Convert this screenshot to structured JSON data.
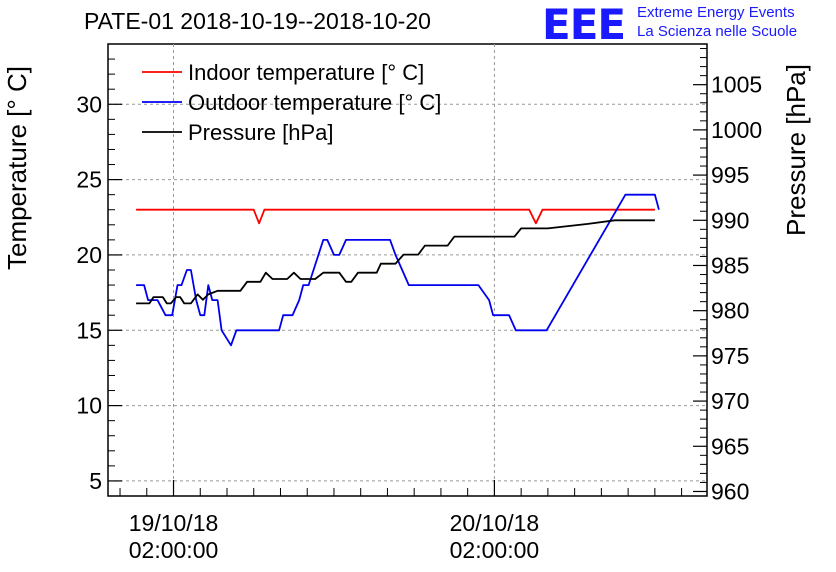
{
  "header": {
    "title": "PATE-01 2018-10-19--2018-10-20",
    "logo_text": "EEE",
    "logo_line1": "Extreme Energy Events",
    "logo_line2": "La Scienza nelle Scuole"
  },
  "colors": {
    "indoor": "#ff0000",
    "outdoor": "#0000ee",
    "pressure": "#000000"
  },
  "chart_data": {
    "type": "line",
    "title": "PATE-01 2018-10-19--2018-10-20",
    "y_left": {
      "label": "Temperature [° C]",
      "min": 4,
      "max": 34,
      "ticks": [
        5,
        10,
        15,
        20,
        25,
        30
      ]
    },
    "y_right": {
      "label": "Pressure [hPa]",
      "min": 959.5,
      "max": 1009.5,
      "ticks": [
        960,
        965,
        970,
        975,
        980,
        985,
        990,
        995,
        1000,
        1005
      ]
    },
    "x_axis": {
      "unit": "hours since 2018-10-19 00:00",
      "range": [
        -2.9,
        41.9
      ],
      "ticks": [
        {
          "x": 2,
          "line1": "19/10/18",
          "line2": "02:00:00"
        },
        {
          "x": 26,
          "line1": "20/10/18",
          "line2": "02:00:00"
        }
      ]
    },
    "grid": true,
    "legend_position": "top-left",
    "series": [
      {
        "name": "Indoor temperature [° C]",
        "axis": "left",
        "color": "#ff0000",
        "points": [
          [
            -0.8,
            23
          ],
          [
            8.0,
            23
          ],
          [
            8.4,
            22.1
          ],
          [
            8.8,
            23
          ],
          [
            28.6,
            23
          ],
          [
            29.1,
            22.1
          ],
          [
            29.6,
            23
          ],
          [
            38.0,
            23
          ]
        ]
      },
      {
        "name": "Outdoor temperature [° C]",
        "axis": "left",
        "color": "#0000ee",
        "points": [
          [
            -0.8,
            18
          ],
          [
            -0.2,
            18
          ],
          [
            0.1,
            17
          ],
          [
            0.8,
            17
          ],
          [
            1.4,
            16
          ],
          [
            1.9,
            16
          ],
          [
            2.3,
            18
          ],
          [
            2.6,
            18
          ],
          [
            3.0,
            19
          ],
          [
            3.3,
            19
          ],
          [
            3.7,
            17
          ],
          [
            4.0,
            16
          ],
          [
            4.3,
            16
          ],
          [
            4.6,
            18
          ],
          [
            4.9,
            17
          ],
          [
            5.3,
            17
          ],
          [
            5.6,
            15
          ],
          [
            6.3,
            14
          ],
          [
            6.7,
            15
          ],
          [
            9.9,
            15
          ],
          [
            10.2,
            16
          ],
          [
            10.9,
            16
          ],
          [
            11.4,
            17
          ],
          [
            11.7,
            18
          ],
          [
            12.1,
            18
          ],
          [
            13.2,
            21
          ],
          [
            13.5,
            21
          ],
          [
            14.0,
            20
          ],
          [
            14.4,
            20
          ],
          [
            14.9,
            21
          ],
          [
            18.2,
            21
          ],
          [
            18.6,
            20
          ],
          [
            19.1,
            19
          ],
          [
            19.6,
            18
          ],
          [
            24.8,
            18
          ],
          [
            25.6,
            17
          ],
          [
            25.9,
            16
          ],
          [
            27.1,
            16
          ],
          [
            27.6,
            15
          ],
          [
            29.9,
            15
          ],
          [
            35.8,
            24
          ],
          [
            38.0,
            24
          ],
          [
            38.3,
            23
          ]
        ]
      },
      {
        "name": "Pressure [hPa]",
        "axis": "right",
        "color": "#000000",
        "points": [
          [
            -0.8,
            980.8
          ],
          [
            0.2,
            980.8
          ],
          [
            0.5,
            981.5
          ],
          [
            1.2,
            981.5
          ],
          [
            1.5,
            980.8
          ],
          [
            1.8,
            980.8
          ],
          [
            2.2,
            981.5
          ],
          [
            2.5,
            981.5
          ],
          [
            2.8,
            980.8
          ],
          [
            3.3,
            980.8
          ],
          [
            3.8,
            981.8
          ],
          [
            4.2,
            981.2
          ],
          [
            4.6,
            981.8
          ],
          [
            5.3,
            982.2
          ],
          [
            7.0,
            982.2
          ],
          [
            7.5,
            983.2
          ],
          [
            8.5,
            983.2
          ],
          [
            8.9,
            984.2
          ],
          [
            9.4,
            983.5
          ],
          [
            10.5,
            983.5
          ],
          [
            11.0,
            984.2
          ],
          [
            11.5,
            983.5
          ],
          [
            12.6,
            983.5
          ],
          [
            13.2,
            984.2
          ],
          [
            14.4,
            984.2
          ],
          [
            14.9,
            983.2
          ],
          [
            15.3,
            983.2
          ],
          [
            15.8,
            984.2
          ],
          [
            17.2,
            984.2
          ],
          [
            17.5,
            985.2
          ],
          [
            18.6,
            985.2
          ],
          [
            19.2,
            986.2
          ],
          [
            20.3,
            986.2
          ],
          [
            20.8,
            987.2
          ],
          [
            22.5,
            987.2
          ],
          [
            23.0,
            988.2
          ],
          [
            27.5,
            988.2
          ],
          [
            28.0,
            989.1
          ],
          [
            30.0,
            989.1
          ],
          [
            33.0,
            989.6
          ],
          [
            35.0,
            990.0
          ],
          [
            38.0,
            990.0
          ]
        ]
      }
    ]
  }
}
